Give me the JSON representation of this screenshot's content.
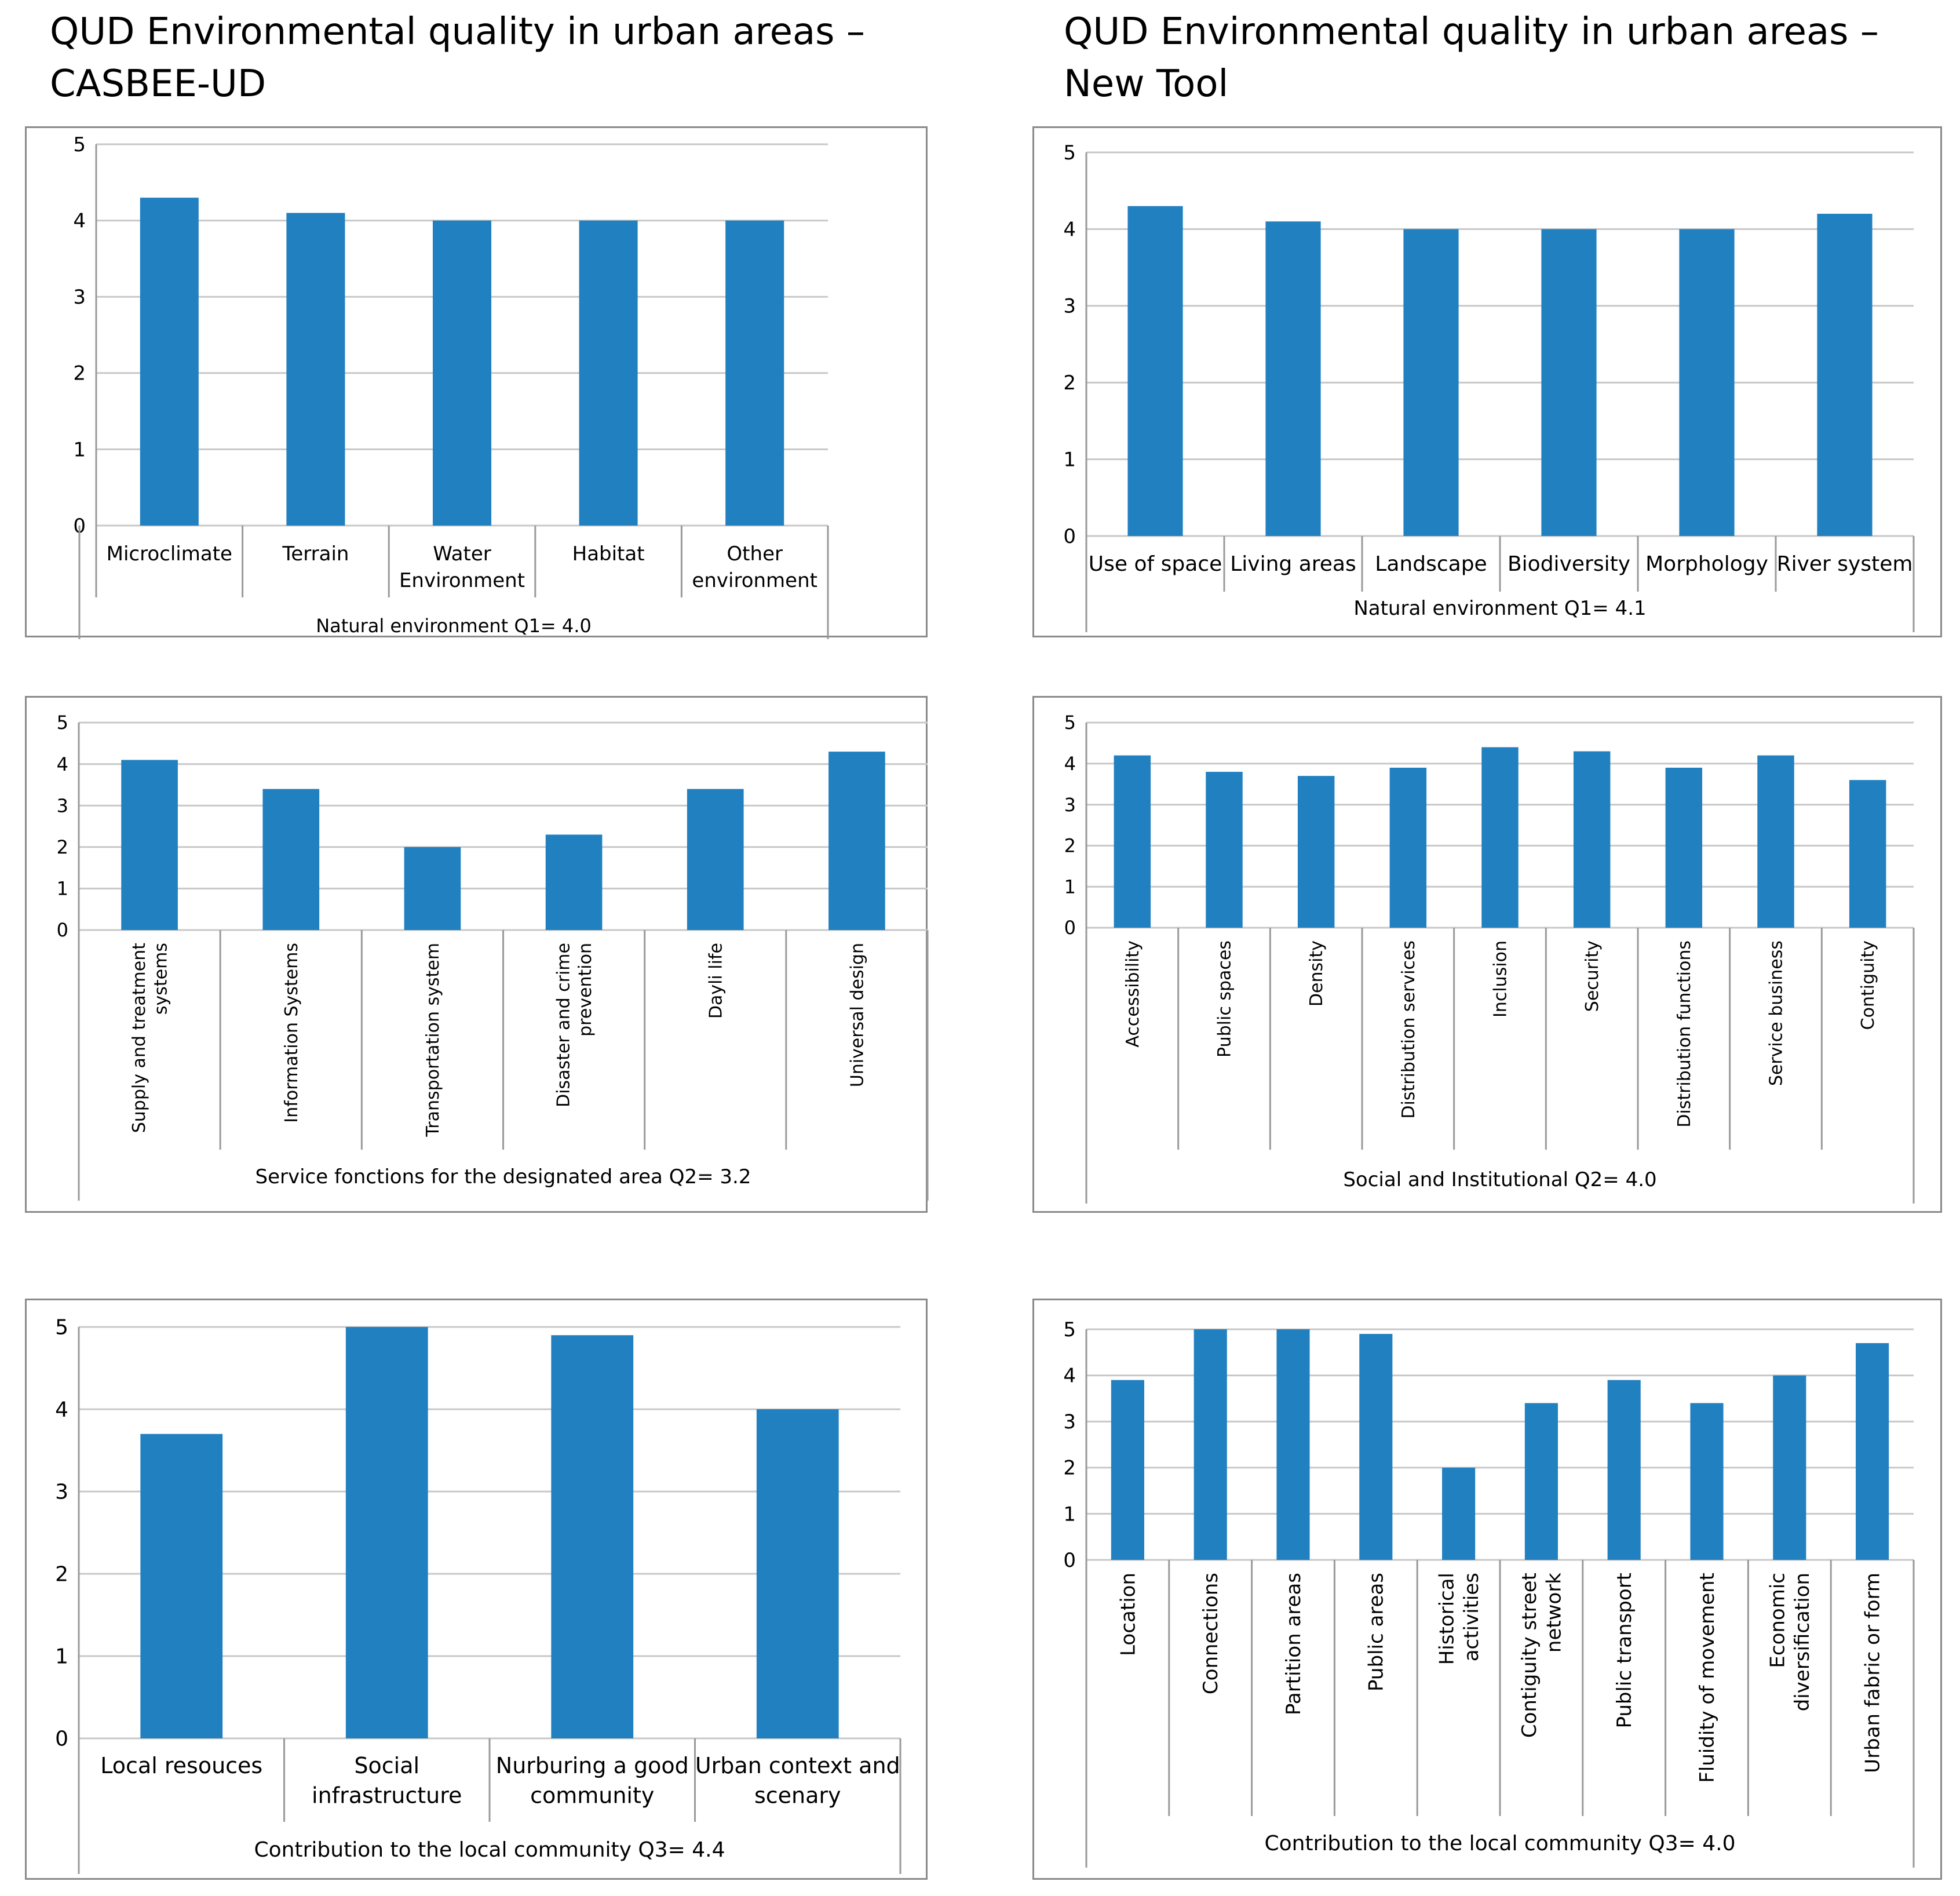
{
  "titles": {
    "left": {
      "line1": "QUD Environmental quality in urban areas –",
      "line2": "CASBEE-UD"
    },
    "right": {
      "line1": "QUD Environmental quality in urban areas –",
      "line2": "New Tool"
    }
  },
  "colors": {
    "bar": "#2180c0",
    "grid": "#c8c8c8",
    "axis": "#9a9a9a",
    "frame": "#8a8a8a"
  },
  "chart_data": [
    {
      "id": "casbee-q1",
      "type": "bar",
      "title": "Natural environment Q1= 4.0",
      "categories": [
        "Microclimate",
        "Terrain",
        "Water Environment",
        "Habitat",
        "Other environment"
      ],
      "values": [
        4.3,
        4.1,
        4.0,
        4.0,
        4.0
      ],
      "ylim": [
        0,
        5
      ],
      "yticks": [
        "0",
        "1",
        "2",
        "3",
        "4",
        "5"
      ],
      "grid": true,
      "legend": "none"
    },
    {
      "id": "newtool-q1",
      "type": "bar",
      "title": "Natural environment Q1= 4.1",
      "categories": [
        "Use of space",
        "Living areas",
        "Landscape",
        "Biodiversity",
        "Morphology",
        "River system"
      ],
      "values": [
        4.3,
        4.1,
        4.0,
        4.0,
        4.0,
        4.2
      ],
      "ylim": [
        0,
        5
      ],
      "yticks": [
        "0",
        "1",
        "2",
        "3",
        "4",
        "5"
      ],
      "grid": true,
      "legend": "none"
    },
    {
      "id": "casbee-q2",
      "type": "bar",
      "title": "Service fonctions for the designated area Q2= 3.2",
      "categories": [
        "Supply and treatment systems",
        "Information Systems",
        "Transportation system",
        "Disaster and crime prevention",
        "Dayli life",
        "Universal design"
      ],
      "values": [
        4.1,
        3.4,
        2.0,
        2.3,
        3.4,
        4.3
      ],
      "ylim": [
        0,
        5
      ],
      "yticks": [
        "0",
        "1",
        "2",
        "3",
        "4",
        "5"
      ],
      "grid": true,
      "legend": "none"
    },
    {
      "id": "newtool-q2",
      "type": "bar",
      "title": "Social and Institutional Q2= 4.0",
      "categories": [
        "Accessibility",
        "Public spaces",
        "Density",
        "Distribution services",
        "Inclusion",
        "Security",
        "Distribution functions",
        "Service business",
        "Contiguity"
      ],
      "values": [
        4.2,
        3.8,
        3.7,
        3.9,
        4.4,
        4.3,
        3.9,
        4.2,
        3.6
      ],
      "ylim": [
        0,
        5
      ],
      "yticks": [
        "0",
        "1",
        "2",
        "3",
        "4",
        "5"
      ],
      "grid": true,
      "legend": "none"
    },
    {
      "id": "casbee-q3",
      "type": "bar",
      "title": "Contribution to the local community Q3= 4.4",
      "categories": [
        "Local resouces",
        "Social infrastructure",
        "Nurburing a good community",
        "Urban context and scenary"
      ],
      "values": [
        3.7,
        5.0,
        4.9,
        4.0
      ],
      "ylim": [
        0,
        5
      ],
      "yticks": [
        "0",
        "1",
        "2",
        "3",
        "4",
        "5"
      ],
      "grid": true,
      "legend": "none"
    },
    {
      "id": "newtool-q3",
      "type": "bar",
      "title": "Contribution to the local community Q3= 4.0",
      "categories": [
        "Location",
        "Connections",
        "Partition areas",
        "Public areas",
        "Historical activities",
        "Contiguity street network",
        "Public transport",
        "Fluidity of movement",
        "Economic diversification",
        "Urban fabric or form"
      ],
      "values": [
        3.9,
        5.0,
        5.0,
        4.9,
        2.0,
        3.4,
        3.9,
        3.4,
        4.0,
        4.7
      ],
      "ylim": [
        0,
        5
      ],
      "yticks": [
        "0",
        "1",
        "2",
        "3",
        "4",
        "5"
      ],
      "grid": true,
      "legend": "none"
    }
  ]
}
